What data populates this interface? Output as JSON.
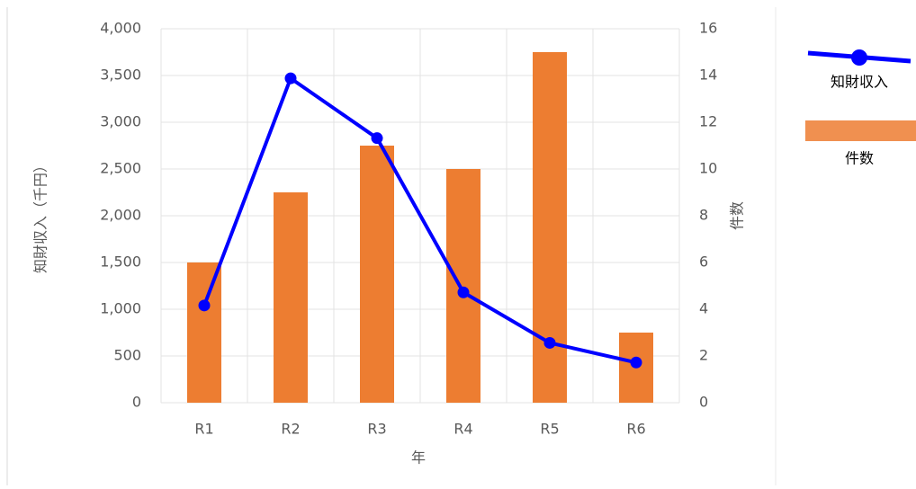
{
  "chart_data": {
    "type": "combo",
    "categories": [
      "R1",
      "R2",
      "R3",
      "R4",
      "R5",
      "R6"
    ],
    "series": [
      {
        "name": "知財収入",
        "type": "line",
        "axis": "y",
        "color": "#0000ff",
        "values": [
          1040,
          3470,
          2830,
          1180,
          640,
          430
        ]
      },
      {
        "name": "件数",
        "type": "bar",
        "axis": "y2",
        "color": "#ed7d31",
        "values": [
          6,
          9,
          11,
          10,
          15,
          3
        ]
      }
    ],
    "xlabel": "年",
    "ylabel": "知財収入（千円）",
    "y2label": "件数",
    "ylim": [
      0,
      4000
    ],
    "yticks": [
      0,
      500,
      {
        "value": 1000,
        "label": "1,000"
      },
      {
        "value": 1500,
        "label": "1,500"
      },
      {
        "value": 2000,
        "label": "2,000"
      },
      {
        "value": 2500,
        "label": "2,500"
      },
      {
        "value": 3000,
        "label": "3,000"
      },
      {
        "value": 3500,
        "label": "3,500"
      },
      {
        "value": 4000,
        "label": "4,000"
      }
    ],
    "y2lim": [
      0,
      16
    ],
    "y2ticks": [
      0,
      2,
      4,
      6,
      8,
      10,
      12,
      14,
      16
    ],
    "grid": true,
    "legend": "right"
  }
}
